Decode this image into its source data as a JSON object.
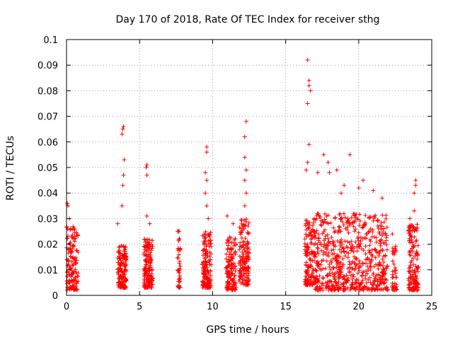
{
  "chart_data": {
    "type": "scatter",
    "title": "Day 170 of 2018, Rate Of TEC Index for receiver sthg",
    "xlabel": "GPS time / hours",
    "ylabel": "ROTI / TECUs",
    "xlim": [
      0,
      25
    ],
    "ylim": [
      0,
      0.1
    ],
    "xticks": [
      0,
      5,
      10,
      15,
      20,
      25
    ],
    "xtick_labels": [
      "0",
      "5",
      "10",
      "15",
      "20",
      "25"
    ],
    "yticks": [
      0,
      0.01,
      0.02,
      0.03,
      0.04,
      0.05,
      0.06,
      0.07,
      0.08,
      0.09,
      0.1
    ],
    "ytick_labels": [
      "0",
      "0.01",
      "0.02",
      "0.03",
      "0.04",
      "0.05",
      "0.06",
      "0.07",
      "0.08",
      "0.09",
      "0.1"
    ],
    "grid": true,
    "marker": "+",
    "color": "#ff0000",
    "series": [
      {
        "name": "ROTI",
        "clusters": [
          {
            "x_range": [
              0.0,
              0.8
            ],
            "y_range": [
              0.002,
              0.027
            ],
            "count": 140,
            "peaks": [
              [
                0.05,
                0.036
              ],
              [
                0.1,
                0.035
              ],
              [
                0.2,
                0.03
              ],
              [
                0.5,
                0.026
              ]
            ]
          },
          {
            "x_range": [
              3.5,
              4.1
            ],
            "y_range": [
              0.003,
              0.02
            ],
            "count": 150,
            "peaks": [
              [
                3.9,
                0.066
              ],
              [
                3.85,
                0.065
              ],
              [
                3.8,
                0.063
              ],
              [
                3.95,
                0.053
              ],
              [
                3.9,
                0.047
              ],
              [
                3.85,
                0.043
              ],
              [
                3.8,
                0.035
              ],
              [
                3.5,
                0.028
              ]
            ]
          },
          {
            "x_range": [
              5.3,
              5.9
            ],
            "y_range": [
              0.003,
              0.022
            ],
            "count": 150,
            "peaks": [
              [
                5.5,
                0.051
              ],
              [
                5.45,
                0.05
              ],
              [
                5.5,
                0.047
              ],
              [
                5.5,
                0.031
              ],
              [
                5.7,
                0.028
              ]
            ]
          },
          {
            "x_range": [
              7.6,
              7.8
            ],
            "y_range": [
              0.003,
              0.026
            ],
            "count": 40,
            "peaks": []
          },
          {
            "x_range": [
              9.3,
              9.9
            ],
            "y_range": [
              0.003,
              0.025
            ],
            "count": 150,
            "peaks": [
              [
                9.6,
                0.058
              ],
              [
                9.6,
                0.056
              ],
              [
                9.5,
                0.048
              ],
              [
                9.6,
                0.045
              ],
              [
                9.5,
                0.04
              ],
              [
                9.6,
                0.035
              ],
              [
                9.7,
                0.03
              ]
            ]
          },
          {
            "x_range": [
              10.9,
              11.6
            ],
            "y_range": [
              0.002,
              0.023
            ],
            "count": 130,
            "peaks": [
              [
                11.0,
                0.031
              ],
              [
                11.4,
                0.028
              ]
            ]
          },
          {
            "x_range": [
              11.8,
              12.5
            ],
            "y_range": [
              0.004,
              0.03
            ],
            "count": 150,
            "peaks": [
              [
                12.3,
                0.068
              ],
              [
                12.2,
                0.062
              ],
              [
                12.2,
                0.054
              ],
              [
                12.3,
                0.049
              ],
              [
                12.2,
                0.045
              ],
              [
                12.3,
                0.04
              ],
              [
                12.2,
                0.035
              ]
            ]
          },
          {
            "x_range": [
              16.3,
              17.0
            ],
            "y_range": [
              0.004,
              0.03
            ],
            "count": 140,
            "peaks": [
              [
                16.5,
                0.092
              ],
              [
                16.6,
                0.084
              ],
              [
                16.6,
                0.082
              ],
              [
                16.7,
                0.08
              ],
              [
                16.5,
                0.075
              ],
              [
                16.6,
                0.059
              ],
              [
                16.5,
                0.052
              ],
              [
                16.4,
                0.049
              ]
            ]
          },
          {
            "x_range": [
              17.0,
              22.0
            ],
            "y_range": [
              0.002,
              0.032
            ],
            "count": 650,
            "peaks": [
              [
                17.6,
                0.055
              ],
              [
                17.9,
                0.052
              ],
              [
                18.0,
                0.048
              ],
              [
                17.2,
                0.048
              ],
              [
                18.5,
                0.049
              ],
              [
                19.4,
                0.055
              ],
              [
                20.3,
                0.045
              ],
              [
                20.0,
                0.042
              ],
              [
                21.0,
                0.041
              ],
              [
                21.6,
                0.038
              ],
              [
                18.8,
                0.04
              ],
              [
                19.0,
                0.043
              ]
            ]
          },
          {
            "x_range": [
              22.3,
              22.6
            ],
            "y_range": [
              0.002,
              0.02
            ],
            "count": 40,
            "peaks": [
              [
                22.3,
                0.024
              ]
            ]
          },
          {
            "x_range": [
              23.4,
              24.1
            ],
            "y_range": [
              0.002,
              0.028
            ],
            "count": 150,
            "peaks": [
              [
                23.9,
                0.045
              ],
              [
                23.9,
                0.043
              ],
              [
                23.8,
                0.04
              ],
              [
                23.8,
                0.033
              ],
              [
                23.5,
                0.03
              ]
            ]
          }
        ]
      }
    ]
  }
}
